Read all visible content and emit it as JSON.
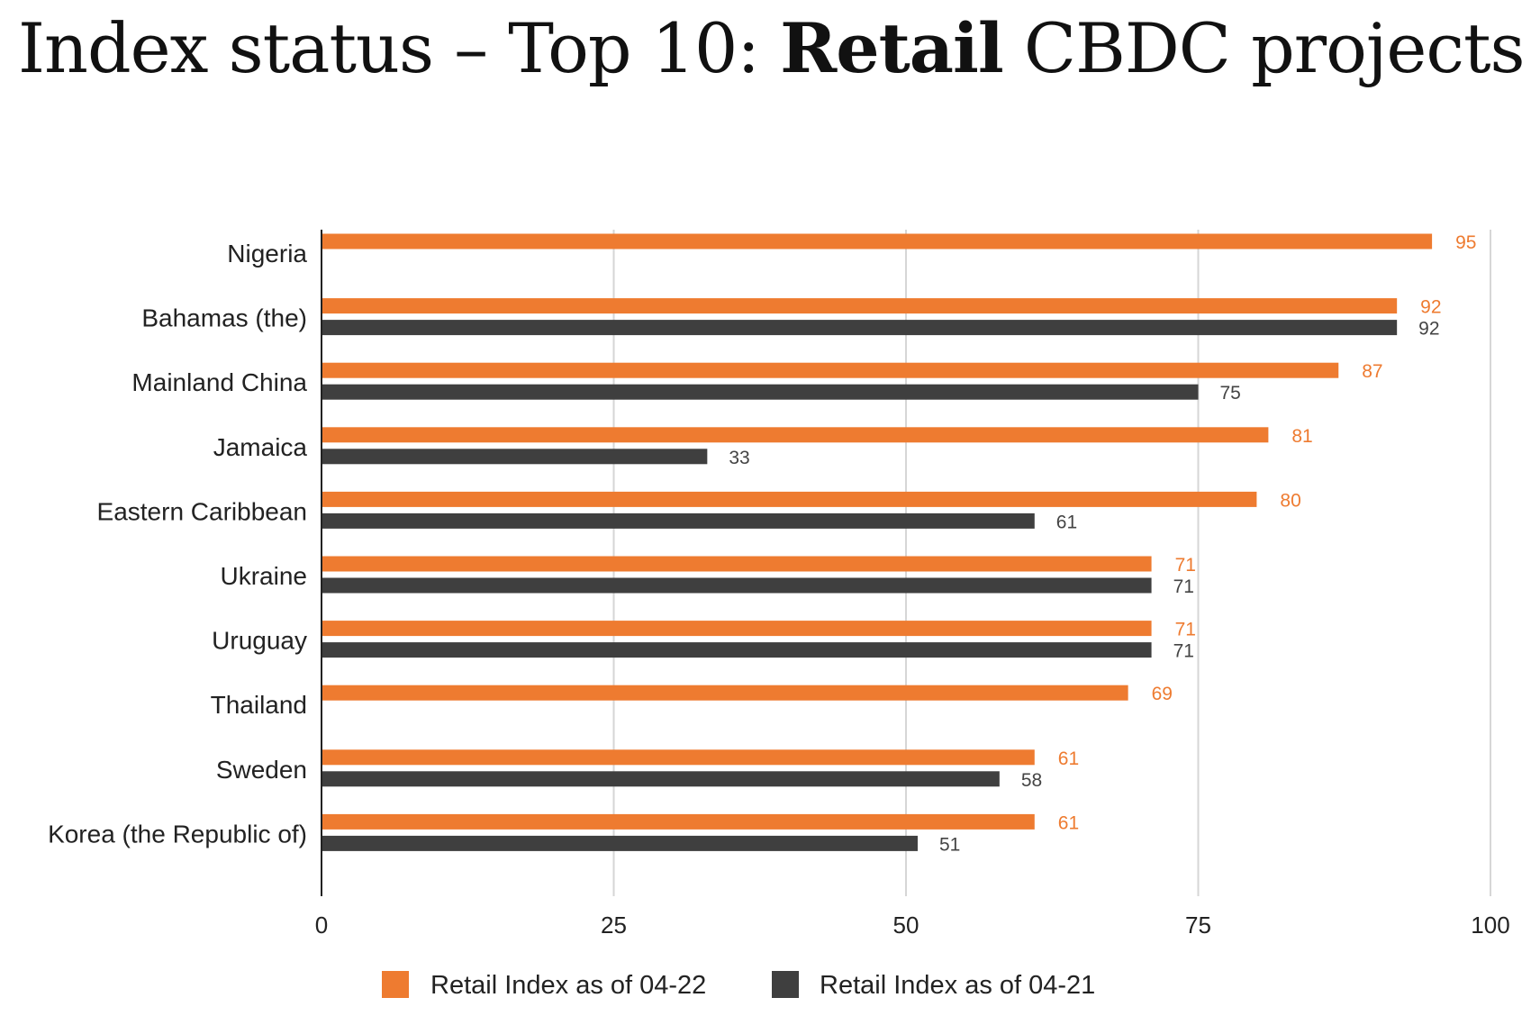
{
  "title": {
    "prefix": "Index status – Top 10: ",
    "strong": "Retail",
    "suffix": " CBDC projects"
  },
  "colors": {
    "series_2022": "#EE7B30",
    "series_2021": "#3F3F3F",
    "gridline": "#D6D6D6",
    "axis": "#222222"
  },
  "chart_data": {
    "type": "bar",
    "orientation": "horizontal",
    "title": "Index status – Top 10: Retail CBDC projects",
    "xlabel": "",
    "ylabel": "",
    "xlim": [
      0,
      100
    ],
    "xticks": [
      0,
      25,
      50,
      75,
      100
    ],
    "grid": true,
    "legend_position": "bottom",
    "categories": [
      "Nigeria",
      "Bahamas (the)",
      "Mainland China",
      "Jamaica",
      "Eastern Caribbean",
      "Ukraine",
      "Uruguay",
      "Thailand",
      "Sweden",
      "Korea (the Republic of)"
    ],
    "series": [
      {
        "name": "Retail Index as of 04-22",
        "color": "#EE7B30",
        "values": [
          95,
          92,
          87,
          81,
          80,
          71,
          71,
          69,
          61,
          61
        ]
      },
      {
        "name": "Retail Index as of 04-21",
        "color": "#3F3F3F",
        "values": [
          null,
          92,
          75,
          33,
          61,
          71,
          71,
          null,
          58,
          51
        ]
      }
    ]
  }
}
